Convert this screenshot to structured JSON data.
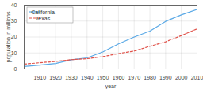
{
  "chart_data": {
    "type": "line",
    "x_label": "year",
    "y_label": "population in millions",
    "x": [
      1900,
      1910,
      1920,
      1930,
      1940,
      1950,
      1960,
      1970,
      1980,
      1990,
      2000,
      2010
    ],
    "series": [
      {
        "name": "California",
        "color": "#5aa9e6",
        "line_style": "solid",
        "values": [
          1.5,
          2.4,
          3.4,
          5.7,
          6.9,
          10.6,
          15.7,
          20.0,
          23.7,
          29.8,
          33.9,
          37.3
        ]
      },
      {
        "name": "Texas",
        "color": "#e0524a",
        "line_style": "dashed",
        "values": [
          3.0,
          3.9,
          4.7,
          5.8,
          6.4,
          7.7,
          9.6,
          11.2,
          14.2,
          17.0,
          20.9,
          25.1
        ]
      }
    ],
    "xlim": [
      1900,
      2010
    ],
    "xticks": [
      1910,
      1920,
      1930,
      1940,
      1950,
      1960,
      1970,
      1980,
      1990,
      2000,
      2010
    ],
    "ylim": [
      0,
      40
    ],
    "yticks": [
      0,
      10,
      20,
      30,
      40
    ],
    "grid": true,
    "legend": "top-left"
  }
}
